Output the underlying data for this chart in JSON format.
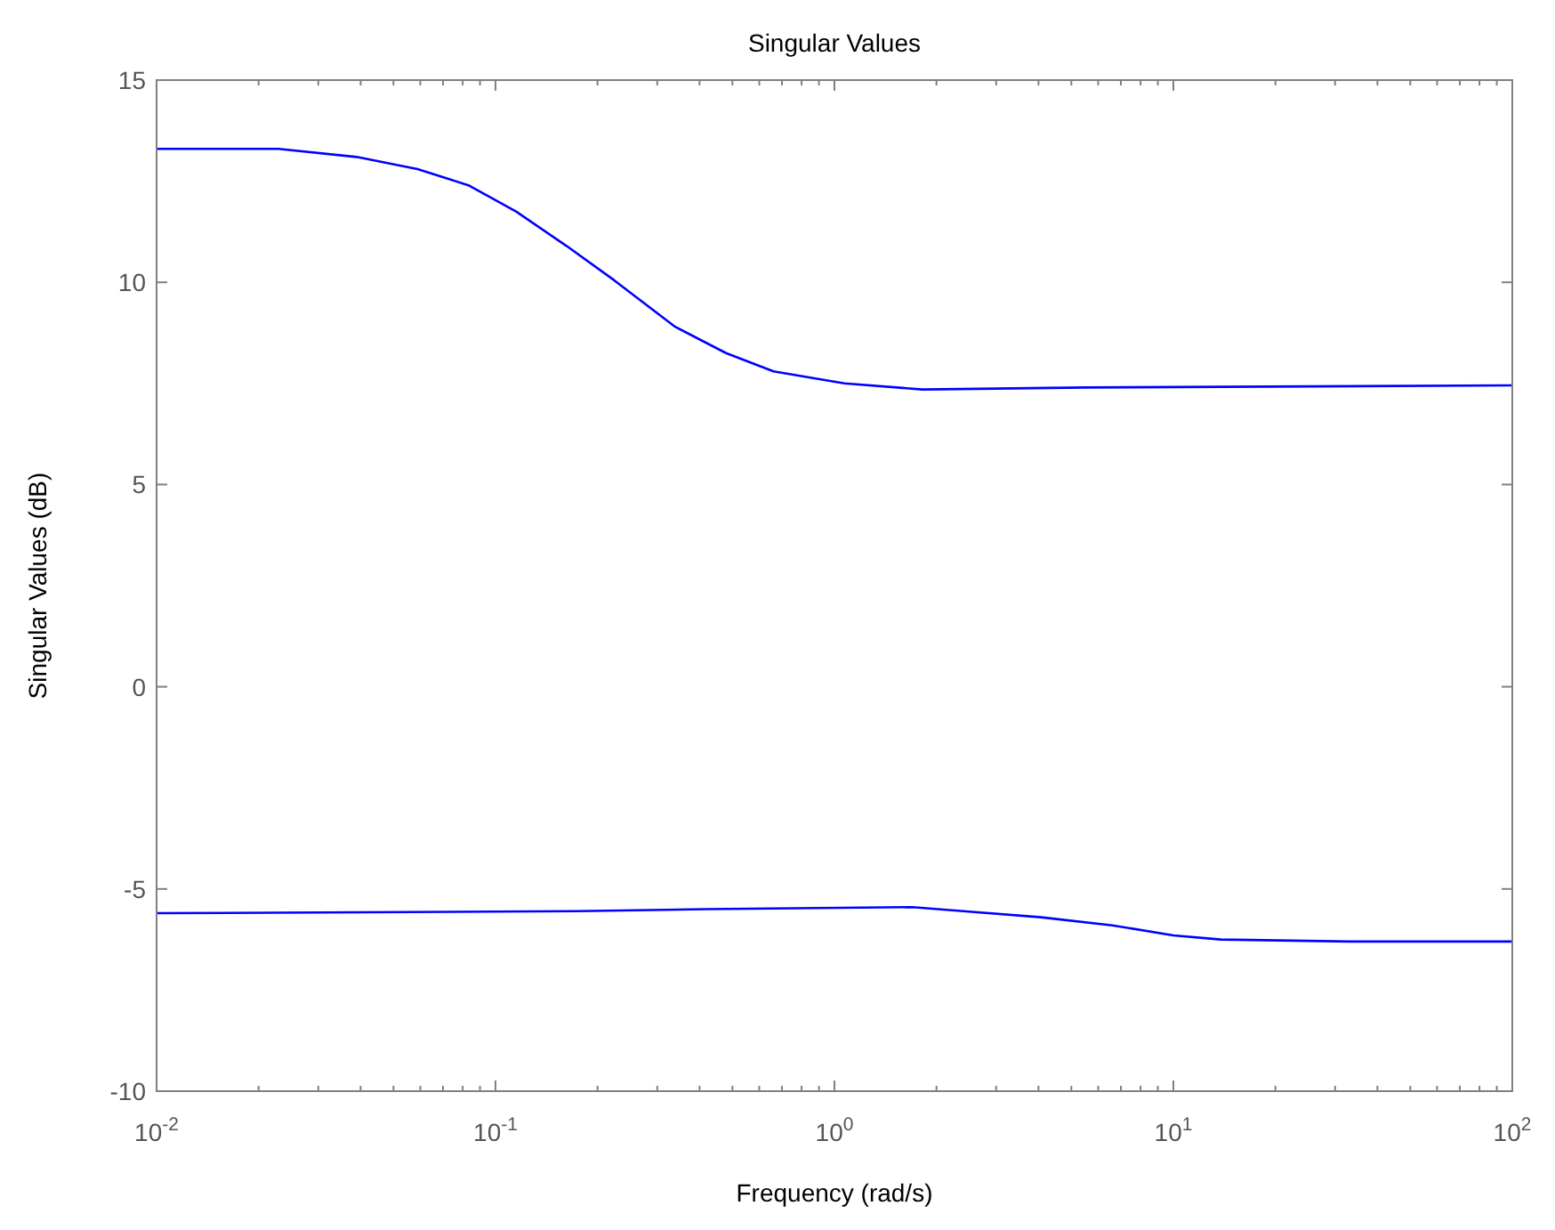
{
  "chart_data": {
    "type": "line",
    "title": "Singular Values",
    "xlabel": "Frequency (rad/s)",
    "ylabel": "Singular Values (dB)",
    "log": "x",
    "grid": false,
    "marker": "none",
    "line_style": "solid",
    "xlim": [
      0.01,
      100
    ],
    "xticks": [
      {
        "value": 0.01,
        "label": "10$^{-2}$"
      },
      {
        "value": 0.02,
        "label": null
      },
      {
        "value": 0.03,
        "label": null
      },
      {
        "value": 0.04,
        "label": null
      },
      {
        "value": 0.05,
        "label": null
      },
      {
        "value": 0.06,
        "label": null
      },
      {
        "value": 0.07,
        "label": null
      },
      {
        "value": 0.08,
        "label": null
      },
      {
        "value": 0.09,
        "label": null
      },
      {
        "value": 0.1,
        "label": "10$^{-1}$"
      },
      {
        "value": 0.2,
        "label": null
      },
      {
        "value": 0.3,
        "label": null
      },
      {
        "value": 0.4,
        "label": null
      },
      {
        "value": 0.5,
        "label": null
      },
      {
        "value": 0.6,
        "label": null
      },
      {
        "value": 0.7,
        "label": null
      },
      {
        "value": 0.8,
        "label": null
      },
      {
        "value": 0.9,
        "label": null
      },
      {
        "value": 1,
        "label": "10$^{0}$"
      },
      {
        "value": 2,
        "label": null
      },
      {
        "value": 3,
        "label": null
      },
      {
        "value": 4,
        "label": null
      },
      {
        "value": 5,
        "label": null
      },
      {
        "value": 6,
        "label": null
      },
      {
        "value": 7,
        "label": null
      },
      {
        "value": 8,
        "label": null
      },
      {
        "value": 9,
        "label": null
      },
      {
        "value": 10,
        "label": "10$^{1}$"
      },
      {
        "value": 20,
        "label": null
      },
      {
        "value": 30,
        "label": null
      },
      {
        "value": 40,
        "label": null
      },
      {
        "value": 50,
        "label": null
      },
      {
        "value": 60,
        "label": null
      },
      {
        "value": 70,
        "label": null
      },
      {
        "value": 80,
        "label": null
      },
      {
        "value": 90,
        "label": null
      },
      {
        "value": 100,
        "label": "10$^{2}$"
      }
    ],
    "ylim": [
      -10,
      15
    ],
    "yticks": [
      -10,
      -5,
      0,
      5,
      10,
      15
    ],
    "series": [
      {
        "color": "#0000ff",
        "x": [
          0.01,
          0.0229,
          0.0389,
          0.0589,
          0.0832,
          0.115,
          0.162,
          0.224,
          0.339,
          0.479,
          0.661,
          1.07,
          1.82,
          5.5,
          100
        ],
        "values": [
          13.3,
          13.3,
          13.1,
          12.8,
          12.4,
          11.75,
          10.9,
          10.05,
          8.9,
          8.25,
          7.8,
          7.5,
          7.35,
          7.4,
          7.45
        ]
      },
      {
        "color": "#0000ff",
        "x": [
          0.01,
          0.174,
          0.417,
          1.7,
          2.4,
          4.07,
          6.61,
          10,
          13.8,
          33.1,
          100
        ],
        "values": [
          -5.6,
          -5.55,
          -5.5,
          -5.45,
          -5.55,
          -5.7,
          -5.9,
          -6.15,
          -6.25,
          -6.3,
          -6.3
        ]
      }
    ]
  }
}
